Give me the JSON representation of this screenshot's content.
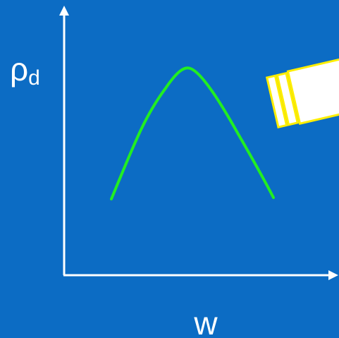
{
  "y_label": {
    "symbol": "ρ",
    "subscript": "d"
  },
  "x_label": "w"
}
